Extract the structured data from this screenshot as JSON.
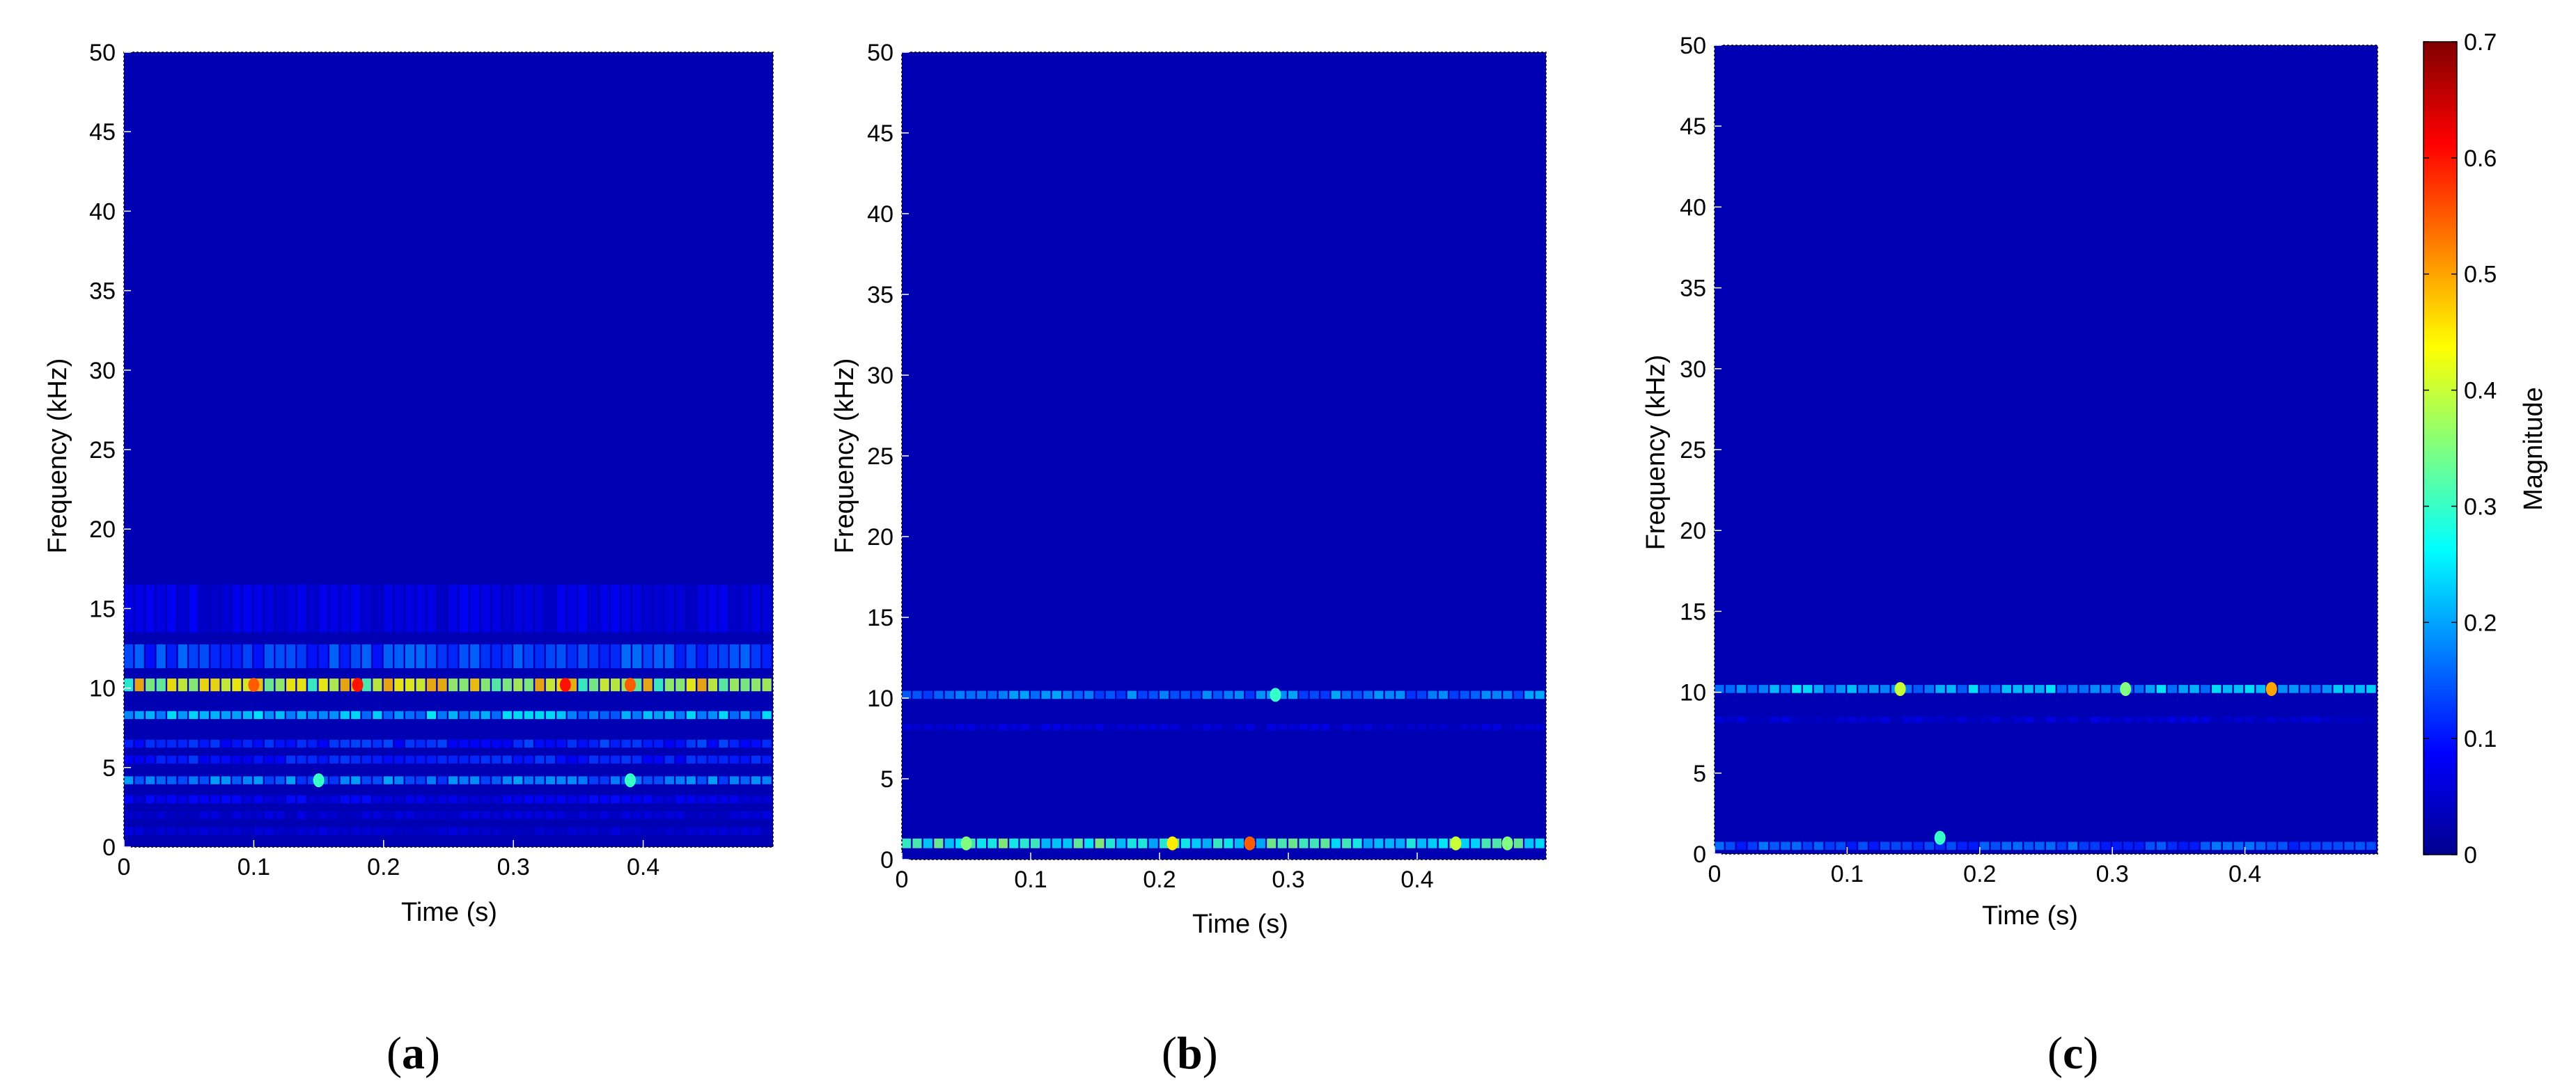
{
  "chart_data": [
    {
      "type": "heatmap",
      "panel_label_open": "(",
      "panel_label_letter": "a",
      "panel_label_close": ")",
      "xlabel": "Time (s)",
      "ylabel": "Frequency (kHz)",
      "xlim": [
        0,
        0.5
      ],
      "ylim": [
        0,
        50
      ],
      "xticks": [
        0,
        0.1,
        0.2,
        0.3,
        0.4
      ],
      "yticks": [
        0,
        5,
        10,
        15,
        20,
        25,
        30,
        35,
        40,
        45,
        50
      ],
      "bands": [
        {
          "freq": 10.2,
          "magnitude": 0.42,
          "width": 0.8
        },
        {
          "freq": 8.3,
          "magnitude": 0.22,
          "width": 0.5
        },
        {
          "freq": 12.0,
          "magnitude": 0.14,
          "width": 1.5
        },
        {
          "freq": 6.5,
          "magnitude": 0.12,
          "width": 0.5
        },
        {
          "freq": 5.5,
          "magnitude": 0.11,
          "width": 0.5
        },
        {
          "freq": 4.2,
          "magnitude": 0.18,
          "width": 0.5
        },
        {
          "freq": 3.0,
          "magnitude": 0.08,
          "width": 0.5
        },
        {
          "freq": 2.0,
          "magnitude": 0.06,
          "width": 0.5
        },
        {
          "freq": 1.0,
          "magnitude": 0.06,
          "width": 0.5
        },
        {
          "freq": 15.0,
          "magnitude": 0.07,
          "width": 3.0
        }
      ],
      "hotspots": [
        {
          "t": 0.1,
          "freq": 10.2,
          "magnitude": 0.55
        },
        {
          "t": 0.15,
          "freq": 4.2,
          "magnitude": 0.3
        },
        {
          "t": 0.18,
          "freq": 10.2,
          "magnitude": 0.6
        },
        {
          "t": 0.34,
          "freq": 10.2,
          "magnitude": 0.6
        },
        {
          "t": 0.39,
          "freq": 4.2,
          "magnitude": 0.3
        },
        {
          "t": 0.39,
          "freq": 10.2,
          "magnitude": 0.55
        }
      ]
    },
    {
      "type": "heatmap",
      "panel_label_open": "(",
      "panel_label_letter": "b",
      "panel_label_close": ")",
      "xlabel": "Time (s)",
      "ylabel": "Frequency (kHz)",
      "xlim": [
        0,
        0.5
      ],
      "ylim": [
        0,
        50
      ],
      "xticks": [
        0,
        0.1,
        0.2,
        0.3,
        0.4
      ],
      "yticks": [
        0,
        5,
        10,
        15,
        20,
        25,
        30,
        35,
        40,
        45,
        50
      ],
      "bands": [
        {
          "freq": 10.2,
          "magnitude": 0.18,
          "width": 0.5
        },
        {
          "freq": 1.0,
          "magnitude": 0.3,
          "width": 0.6
        },
        {
          "freq": 8.2,
          "magnitude": 0.06,
          "width": 0.4
        }
      ],
      "hotspots": [
        {
          "t": 0.05,
          "freq": 1.0,
          "magnitude": 0.35
        },
        {
          "t": 0.21,
          "freq": 1.0,
          "magnitude": 0.45
        },
        {
          "t": 0.27,
          "freq": 1.0,
          "magnitude": 0.55
        },
        {
          "t": 0.29,
          "freq": 10.2,
          "magnitude": 0.3
        },
        {
          "t": 0.43,
          "freq": 1.0,
          "magnitude": 0.4
        },
        {
          "t": 0.47,
          "freq": 1.0,
          "magnitude": 0.35
        }
      ]
    },
    {
      "type": "heatmap",
      "panel_label_open": "(",
      "panel_label_letter": "c",
      "panel_label_close": ")",
      "xlabel": "Time (s)",
      "ylabel": "Frequency (kHz)",
      "xlim": [
        0,
        0.5
      ],
      "ylim": [
        0,
        50
      ],
      "xticks": [
        0,
        0.1,
        0.2,
        0.3,
        0.4
      ],
      "yticks": [
        0,
        5,
        10,
        15,
        20,
        25,
        30,
        35,
        40,
        45,
        50
      ],
      "bands": [
        {
          "freq": 10.2,
          "magnitude": 0.22,
          "width": 0.5
        },
        {
          "freq": 0.5,
          "magnitude": 0.15,
          "width": 0.5
        },
        {
          "freq": 8.3,
          "magnitude": 0.06,
          "width": 0.4
        }
      ],
      "hotspots": [
        {
          "t": 0.14,
          "freq": 10.2,
          "magnitude": 0.4
        },
        {
          "t": 0.17,
          "freq": 1.0,
          "magnitude": 0.3
        },
        {
          "t": 0.31,
          "freq": 10.2,
          "magnitude": 0.35
        },
        {
          "t": 0.42,
          "freq": 10.2,
          "magnitude": 0.5
        }
      ]
    }
  ],
  "colorbar": {
    "label": "Magnitude",
    "colormap": "jet",
    "range": [
      0,
      0.7
    ],
    "ticks": [
      0,
      0.1,
      0.2,
      0.3,
      0.4,
      0.5,
      0.6,
      0.7
    ]
  }
}
